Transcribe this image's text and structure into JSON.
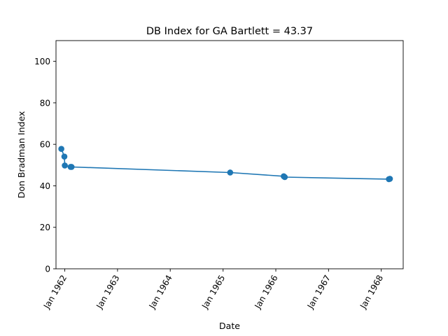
{
  "chart_data": {
    "type": "line",
    "title": "DB Index for GA Bartlett = 43.37",
    "xlabel": "Date",
    "ylabel": "Don Bradman Index",
    "x_ticks": [
      "Jan 1962",
      "Jan 1963",
      "Jan 1964",
      "Jan 1965",
      "Jan 1966",
      "Jan 1967",
      "Jan 1968"
    ],
    "y_ticks": [
      "0",
      "20",
      "40",
      "60",
      "80",
      "100"
    ],
    "xlim": [
      "1961-11-01",
      "1968-06-01"
    ],
    "ylim": [
      0,
      110
    ],
    "grid": false,
    "color": "#1f77b4",
    "series": [
      {
        "x": [
          "1961-12-08",
          "1961-12-29",
          "1962-01-01",
          "1962-02-10",
          "1962-02-17",
          "1965-02-19",
          "1966-02-25",
          "1966-03-04",
          "1968-02-23",
          "1968-03-01"
        ],
        "y": [
          57.8,
          54.1,
          49.8,
          49.1,
          49.1,
          46.4,
          44.6,
          44.2,
          43.2,
          43.37
        ]
      }
    ]
  }
}
